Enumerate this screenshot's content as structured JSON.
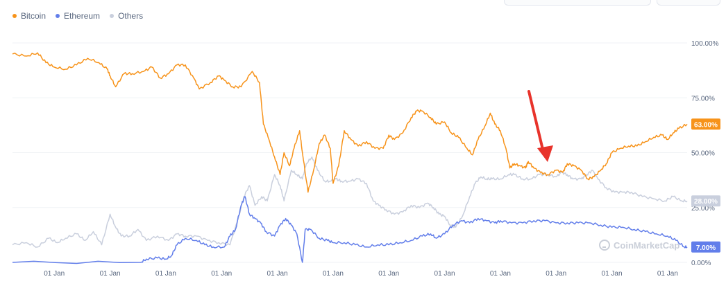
{
  "legend": {
    "items": [
      {
        "label": "Bitcoin",
        "color": "#f7931a"
      },
      {
        "label": "Ethereum",
        "color": "#627eea"
      },
      {
        "label": "Others",
        "color": "#c9cfdd"
      }
    ]
  },
  "watermark": {
    "text": "CoinMarketCap"
  },
  "annotation": {
    "type": "red-arrow",
    "color": "#e8332b",
    "points_to": "Bitcoin dominance low"
  },
  "chart_data": {
    "type": "line",
    "title": "",
    "xlabel": "",
    "ylabel": "",
    "ylim": [
      0,
      100
    ],
    "y_ticks": [
      "0.00%",
      "25.00%",
      "50.00%",
      "75.00%",
      "100.00%"
    ],
    "x_tick_labels": [
      "01 Jan",
      "01 Jan",
      "01 Jan",
      "01 Jan",
      "01 Jan",
      "01 Jan",
      "01 Jan",
      "01 Jan",
      "01 Jan",
      "01 Jan",
      "01 Jan",
      "01 Jan"
    ],
    "x_years_approx": [
      2014,
      2015,
      2016,
      2017,
      2018,
      2019,
      2020,
      2021,
      2022,
      2023,
      2024,
      2025
    ],
    "x_range_years": [
      2013.25,
      2025.35
    ],
    "grid": true,
    "legend_position": "top-left",
    "current_labels": {
      "Bitcoin": "63.00%",
      "Ethereum": "7.00%",
      "Others": "28.00%"
    },
    "series": [
      {
        "name": "Bitcoin",
        "color": "#f7931a",
        "points": [
          [
            2013.25,
            95
          ],
          [
            2013.5,
            94
          ],
          [
            2013.7,
            95.5
          ],
          [
            2013.85,
            91
          ],
          [
            2014.0,
            89
          ],
          [
            2014.2,
            88
          ],
          [
            2014.4,
            90
          ],
          [
            2014.6,
            93
          ],
          [
            2014.8,
            91
          ],
          [
            2014.95,
            88
          ],
          [
            2015.0,
            85
          ],
          [
            2015.1,
            80
          ],
          [
            2015.25,
            86
          ],
          [
            2015.4,
            86
          ],
          [
            2015.6,
            87
          ],
          [
            2015.75,
            89
          ],
          [
            2015.9,
            84
          ],
          [
            2016.05,
            86
          ],
          [
            2016.2,
            90
          ],
          [
            2016.35,
            90
          ],
          [
            2016.5,
            84
          ],
          [
            2016.6,
            79
          ],
          [
            2016.8,
            82
          ],
          [
            2016.95,
            85
          ],
          [
            2017.05,
            83
          ],
          [
            2017.2,
            80
          ],
          [
            2017.35,
            80
          ],
          [
            2017.55,
            87
          ],
          [
            2017.68,
            82
          ],
          [
            2017.75,
            63
          ],
          [
            2017.85,
            56
          ],
          [
            2017.95,
            48
          ],
          [
            2018.05,
            40
          ],
          [
            2018.12,
            50
          ],
          [
            2018.22,
            44
          ],
          [
            2018.3,
            52
          ],
          [
            2018.4,
            60
          ],
          [
            2018.45,
            50
          ],
          [
            2018.55,
            32
          ],
          [
            2018.65,
            42
          ],
          [
            2018.75,
            54
          ],
          [
            2018.85,
            58
          ],
          [
            2018.95,
            52
          ],
          [
            2019.0,
            36
          ],
          [
            2019.1,
            44
          ],
          [
            2019.2,
            60
          ],
          [
            2019.32,
            56
          ],
          [
            2019.45,
            53
          ],
          [
            2019.6,
            55
          ],
          [
            2019.75,
            52
          ],
          [
            2019.9,
            52
          ],
          [
            2020.0,
            58
          ],
          [
            2020.1,
            56
          ],
          [
            2020.25,
            59
          ],
          [
            2020.4,
            66
          ],
          [
            2020.5,
            69
          ],
          [
            2020.6,
            69
          ],
          [
            2020.75,
            66
          ],
          [
            2020.85,
            63
          ],
          [
            2021.0,
            64
          ],
          [
            2021.12,
            59
          ],
          [
            2021.25,
            57
          ],
          [
            2021.4,
            52
          ],
          [
            2021.5,
            49
          ],
          [
            2021.6,
            56
          ],
          [
            2021.72,
            62
          ],
          [
            2021.82,
            68
          ],
          [
            2021.9,
            63
          ],
          [
            2022.0,
            60
          ],
          [
            2022.1,
            52
          ],
          [
            2022.17,
            43
          ],
          [
            2022.25,
            45
          ],
          [
            2022.35,
            44
          ],
          [
            2022.45,
            43
          ],
          [
            2022.5,
            46
          ],
          [
            2022.6,
            43
          ],
          [
            2022.72,
            41
          ],
          [
            2022.85,
            40
          ],
          [
            2023.0,
            42
          ],
          [
            2023.12,
            41
          ],
          [
            2023.2,
            45
          ],
          [
            2023.32,
            44
          ],
          [
            2023.45,
            42
          ],
          [
            2023.57,
            38
          ],
          [
            2023.68,
            39
          ],
          [
            2023.8,
            42
          ],
          [
            2023.9,
            45
          ],
          [
            2024.0,
            50
          ],
          [
            2024.15,
            52
          ],
          [
            2024.3,
            53
          ],
          [
            2024.45,
            53
          ],
          [
            2024.6,
            55
          ],
          [
            2024.75,
            57
          ],
          [
            2024.9,
            58
          ],
          [
            2025.0,
            56
          ],
          [
            2025.1,
            59
          ],
          [
            2025.2,
            61
          ],
          [
            2025.35,
            63
          ]
        ]
      },
      {
        "name": "Ethereum",
        "color": "#627eea",
        "points": [
          [
            2013.25,
            0
          ],
          [
            2015.55,
            0
          ],
          [
            2015.65,
            1.5
          ],
          [
            2015.85,
            2
          ],
          [
            2016.0,
            1.5
          ],
          [
            2016.1,
            3
          ],
          [
            2016.2,
            8
          ],
          [
            2016.35,
            11
          ],
          [
            2016.55,
            10
          ],
          [
            2016.7,
            8
          ],
          [
            2016.85,
            7
          ],
          [
            2017.05,
            7
          ],
          [
            2017.15,
            12
          ],
          [
            2017.25,
            15
          ],
          [
            2017.35,
            26
          ],
          [
            2017.42,
            30
          ],
          [
            2017.5,
            22
          ],
          [
            2017.6,
            20
          ],
          [
            2017.7,
            18
          ],
          [
            2017.8,
            14
          ],
          [
            2017.95,
            12
          ],
          [
            2018.05,
            17
          ],
          [
            2018.15,
            20
          ],
          [
            2018.25,
            17
          ],
          [
            2018.35,
            13
          ],
          [
            2018.45,
            0
          ],
          [
            2018.5,
            15
          ],
          [
            2018.6,
            15
          ],
          [
            2018.75,
            11
          ],
          [
            2018.9,
            10
          ],
          [
            2019.0,
            9
          ],
          [
            2019.2,
            9
          ],
          [
            2019.4,
            8
          ],
          [
            2019.6,
            7
          ],
          [
            2019.8,
            8
          ],
          [
            2020.0,
            8
          ],
          [
            2020.2,
            9
          ],
          [
            2020.4,
            10
          ],
          [
            2020.6,
            12
          ],
          [
            2020.75,
            13
          ],
          [
            2020.85,
            11
          ],
          [
            2021.0,
            13
          ],
          [
            2021.15,
            17
          ],
          [
            2021.3,
            19
          ],
          [
            2021.45,
            18
          ],
          [
            2021.6,
            20
          ],
          [
            2021.75,
            19
          ],
          [
            2021.9,
            18
          ],
          [
            2022.0,
            19
          ],
          [
            2022.2,
            18
          ],
          [
            2022.4,
            18
          ],
          [
            2022.6,
            19
          ],
          [
            2022.8,
            19
          ],
          [
            2023.0,
            18
          ],
          [
            2023.2,
            18
          ],
          [
            2023.4,
            18
          ],
          [
            2023.6,
            18
          ],
          [
            2023.8,
            17
          ],
          [
            2024.0,
            16
          ],
          [
            2024.2,
            16
          ],
          [
            2024.4,
            15
          ],
          [
            2024.6,
            14
          ],
          [
            2024.8,
            13
          ],
          [
            2025.0,
            12
          ],
          [
            2025.15,
            10
          ],
          [
            2025.3,
            7
          ],
          [
            2025.35,
            7
          ]
        ]
      },
      {
        "name": "Others",
        "color": "#c9cfdd",
        "points": [
          [
            2013.25,
            8
          ],
          [
            2013.5,
            9
          ],
          [
            2013.7,
            7
          ],
          [
            2013.9,
            11
          ],
          [
            2014.05,
            9
          ],
          [
            2014.2,
            11
          ],
          [
            2014.4,
            13
          ],
          [
            2014.55,
            10
          ],
          [
            2014.7,
            14
          ],
          [
            2014.85,
            8
          ],
          [
            2015.0,
            22
          ],
          [
            2015.1,
            16
          ],
          [
            2015.2,
            12
          ],
          [
            2015.35,
            12
          ],
          [
            2015.5,
            15
          ],
          [
            2015.65,
            10
          ],
          [
            2015.85,
            12
          ],
          [
            2016.05,
            10
          ],
          [
            2016.2,
            13
          ],
          [
            2016.35,
            12
          ],
          [
            2016.55,
            12
          ],
          [
            2016.75,
            10
          ],
          [
            2016.95,
            9
          ],
          [
            2017.15,
            8
          ],
          [
            2017.3,
            20
          ],
          [
            2017.4,
            30
          ],
          [
            2017.5,
            35
          ],
          [
            2017.6,
            26
          ],
          [
            2017.72,
            30
          ],
          [
            2017.82,
            28
          ],
          [
            2017.95,
            40
          ],
          [
            2018.05,
            35
          ],
          [
            2018.12,
            28
          ],
          [
            2018.25,
            42
          ],
          [
            2018.35,
            40
          ],
          [
            2018.45,
            38
          ],
          [
            2018.52,
            45
          ],
          [
            2018.62,
            48
          ],
          [
            2018.72,
            42
          ],
          [
            2018.85,
            37
          ],
          [
            2018.95,
            37
          ],
          [
            2019.05,
            38
          ],
          [
            2019.15,
            37
          ],
          [
            2019.3,
            37
          ],
          [
            2019.45,
            38
          ],
          [
            2019.6,
            36
          ],
          [
            2019.72,
            28
          ],
          [
            2019.82,
            26
          ],
          [
            2019.95,
            24
          ],
          [
            2020.1,
            22
          ],
          [
            2020.25,
            23
          ],
          [
            2020.4,
            26
          ],
          [
            2020.55,
            25
          ],
          [
            2020.7,
            27
          ],
          [
            2020.8,
            25
          ],
          [
            2020.9,
            22
          ],
          [
            2021.0,
            21
          ],
          [
            2021.1,
            17
          ],
          [
            2021.2,
            16
          ],
          [
            2021.32,
            21
          ],
          [
            2021.45,
            30
          ],
          [
            2021.55,
            36
          ],
          [
            2021.65,
            39
          ],
          [
            2021.75,
            38
          ],
          [
            2021.85,
            38
          ],
          [
            2022.0,
            38
          ],
          [
            2022.15,
            40
          ],
          [
            2022.25,
            40
          ],
          [
            2022.4,
            38
          ],
          [
            2022.55,
            38
          ],
          [
            2022.7,
            40
          ],
          [
            2022.85,
            40
          ],
          [
            2023.0,
            39
          ],
          [
            2023.1,
            41
          ],
          [
            2023.2,
            40
          ],
          [
            2023.3,
            38
          ],
          [
            2023.45,
            38
          ],
          [
            2023.55,
            40
          ],
          [
            2023.65,
            42
          ],
          [
            2023.75,
            38
          ],
          [
            2023.9,
            34
          ],
          [
            2024.05,
            32
          ],
          [
            2024.2,
            32
          ],
          [
            2024.35,
            32
          ],
          [
            2024.55,
            30
          ],
          [
            2024.75,
            29
          ],
          [
            2024.95,
            28
          ],
          [
            2025.1,
            30
          ],
          [
            2025.25,
            28
          ],
          [
            2025.35,
            28
          ]
        ]
      }
    ]
  }
}
